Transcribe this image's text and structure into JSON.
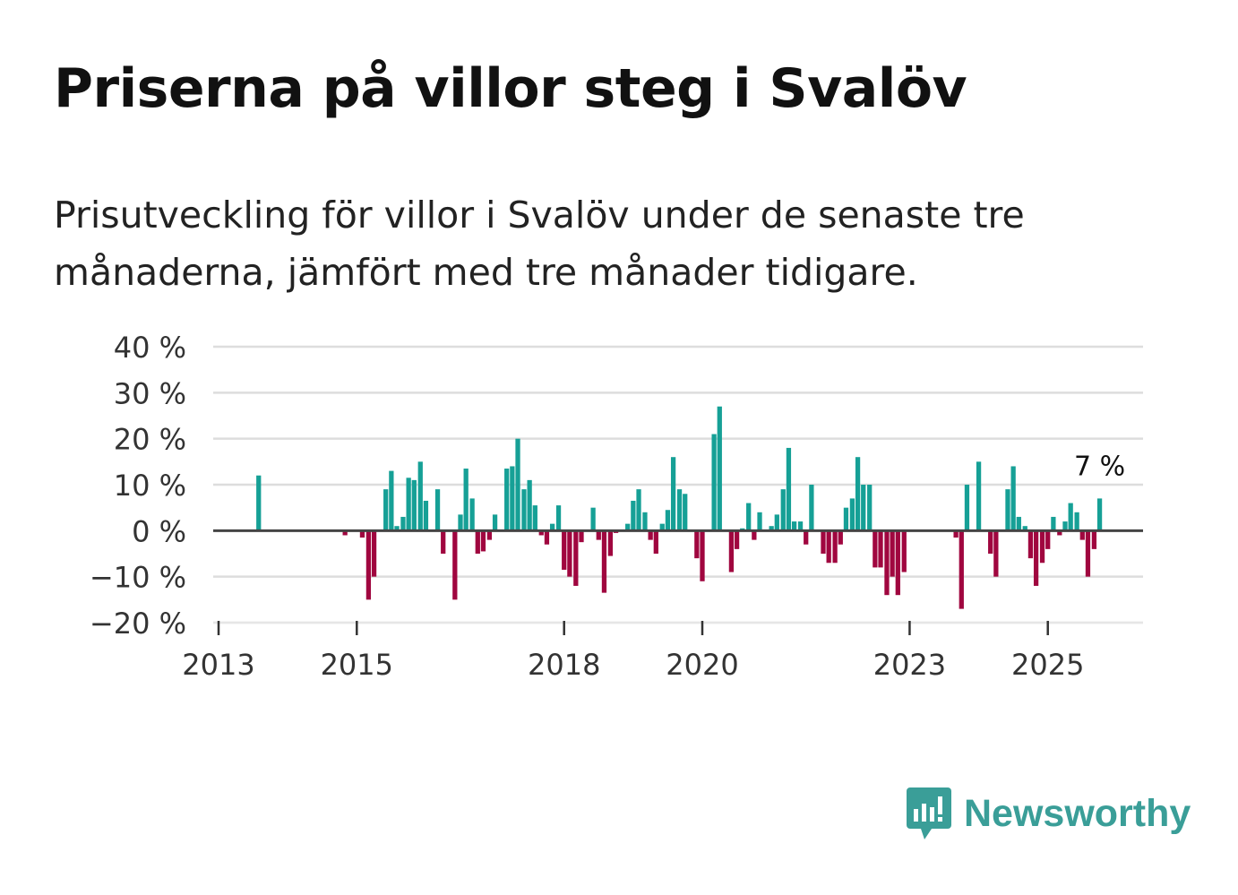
{
  "title": "Priserna på villor steg i Svalöv",
  "subtitle": "Prisutveckling för villor i Svalöv under de senaste tre månaderna, jämfört med tre månader tidigare.",
  "brand": {
    "name": "Newsworthy",
    "color": "#3a9e98"
  },
  "colors": {
    "positive": "#16a096",
    "negative": "#a0063f",
    "grid": "#dddddd",
    "zero": "#444444"
  },
  "chart_data": {
    "type": "bar",
    "title": "Priserna på villor steg i Svalöv",
    "ylim": [
      -20,
      40
    ],
    "yticks": [
      40,
      30,
      20,
      10,
      0,
      -10,
      -20
    ],
    "ytick_labels": [
      "40 %",
      "30 %",
      "20 %",
      "10 %",
      "0 %",
      "−10 %",
      "−20 %"
    ],
    "xticks": [
      {
        "year": 2013,
        "label": "2013"
      },
      {
        "year": 2015,
        "label": "2015"
      },
      {
        "year": 2018,
        "label": "2018"
      },
      {
        "year": 2020,
        "label": "2020"
      },
      {
        "year": 2023,
        "label": "2023"
      },
      {
        "year": 2025,
        "label": "2025"
      }
    ],
    "start_year": 2013,
    "end_year": 2026.4,
    "last_value_label": "7 %",
    "months_per_bar": 1,
    "series": [
      {
        "t": 2013.58,
        "v": 12
      },
      {
        "t": 2014.83,
        "v": -1
      },
      {
        "t": 2015.08,
        "v": -1.5
      },
      {
        "t": 2015.17,
        "v": -15
      },
      {
        "t": 2015.25,
        "v": -10
      },
      {
        "t": 2015.42,
        "v": 9
      },
      {
        "t": 2015.5,
        "v": 13
      },
      {
        "t": 2015.58,
        "v": 1
      },
      {
        "t": 2015.67,
        "v": 3
      },
      {
        "t": 2015.75,
        "v": 11.5
      },
      {
        "t": 2015.83,
        "v": 11
      },
      {
        "t": 2015.92,
        "v": 15
      },
      {
        "t": 2016.0,
        "v": 6.5
      },
      {
        "t": 2016.17,
        "v": 9
      },
      {
        "t": 2016.25,
        "v": -5
      },
      {
        "t": 2016.42,
        "v": -15
      },
      {
        "t": 2016.5,
        "v": 3.5
      },
      {
        "t": 2016.58,
        "v": 13.5
      },
      {
        "t": 2016.67,
        "v": 7
      },
      {
        "t": 2016.75,
        "v": -5
      },
      {
        "t": 2016.83,
        "v": -4.5
      },
      {
        "t": 2016.92,
        "v": -2
      },
      {
        "t": 2017.0,
        "v": 3.5
      },
      {
        "t": 2017.17,
        "v": 13.5
      },
      {
        "t": 2017.25,
        "v": 14
      },
      {
        "t": 2017.33,
        "v": 20
      },
      {
        "t": 2017.42,
        "v": 9
      },
      {
        "t": 2017.5,
        "v": 11
      },
      {
        "t": 2017.58,
        "v": 5.5
      },
      {
        "t": 2017.67,
        "v": -1
      },
      {
        "t": 2017.75,
        "v": -3
      },
      {
        "t": 2017.83,
        "v": 1.5
      },
      {
        "t": 2017.92,
        "v": 5.5
      },
      {
        "t": 2018.0,
        "v": -8.5
      },
      {
        "t": 2018.08,
        "v": -10
      },
      {
        "t": 2018.17,
        "v": -12
      },
      {
        "t": 2018.25,
        "v": -2.5
      },
      {
        "t": 2018.42,
        "v": 5
      },
      {
        "t": 2018.5,
        "v": -2
      },
      {
        "t": 2018.58,
        "v": -13.5
      },
      {
        "t": 2018.67,
        "v": -5.5
      },
      {
        "t": 2018.75,
        "v": -0.5
      },
      {
        "t": 2018.92,
        "v": 1.5
      },
      {
        "t": 2019.0,
        "v": 6.5
      },
      {
        "t": 2019.08,
        "v": 9
      },
      {
        "t": 2019.17,
        "v": 4
      },
      {
        "t": 2019.25,
        "v": -2
      },
      {
        "t": 2019.33,
        "v": -5
      },
      {
        "t": 2019.42,
        "v": 1.5
      },
      {
        "t": 2019.5,
        "v": 4.5
      },
      {
        "t": 2019.58,
        "v": 16
      },
      {
        "t": 2019.67,
        "v": 9
      },
      {
        "t": 2019.75,
        "v": 8
      },
      {
        "t": 2019.92,
        "v": -6
      },
      {
        "t": 2020.0,
        "v": -11
      },
      {
        "t": 2020.17,
        "v": 21
      },
      {
        "t": 2020.25,
        "v": 27
      },
      {
        "t": 2020.42,
        "v": -9
      },
      {
        "t": 2020.5,
        "v": -4
      },
      {
        "t": 2020.58,
        "v": 0.5
      },
      {
        "t": 2020.67,
        "v": 6
      },
      {
        "t": 2020.75,
        "v": -2
      },
      {
        "t": 2020.83,
        "v": 4
      },
      {
        "t": 2021.0,
        "v": 1
      },
      {
        "t": 2021.08,
        "v": 3.5
      },
      {
        "t": 2021.17,
        "v": 9
      },
      {
        "t": 2021.25,
        "v": 18
      },
      {
        "t": 2021.33,
        "v": 2
      },
      {
        "t": 2021.42,
        "v": 2
      },
      {
        "t": 2021.5,
        "v": -3
      },
      {
        "t": 2021.58,
        "v": 10
      },
      {
        "t": 2021.75,
        "v": -5
      },
      {
        "t": 2021.83,
        "v": -7
      },
      {
        "t": 2021.92,
        "v": -7
      },
      {
        "t": 2022.0,
        "v": -3
      },
      {
        "t": 2022.08,
        "v": 5
      },
      {
        "t": 2022.17,
        "v": 7
      },
      {
        "t": 2022.25,
        "v": 16
      },
      {
        "t": 2022.33,
        "v": 10
      },
      {
        "t": 2022.42,
        "v": 10
      },
      {
        "t": 2022.5,
        "v": -8
      },
      {
        "t": 2022.58,
        "v": -8
      },
      {
        "t": 2022.67,
        "v": -14
      },
      {
        "t": 2022.75,
        "v": -10
      },
      {
        "t": 2022.83,
        "v": -14
      },
      {
        "t": 2022.92,
        "v": -9
      },
      {
        "t": 2023.67,
        "v": -1.5
      },
      {
        "t": 2023.75,
        "v": -17
      },
      {
        "t": 2023.83,
        "v": 10
      },
      {
        "t": 2024.0,
        "v": 15
      },
      {
        "t": 2024.17,
        "v": -5
      },
      {
        "t": 2024.25,
        "v": -10
      },
      {
        "t": 2024.42,
        "v": 9
      },
      {
        "t": 2024.5,
        "v": 14
      },
      {
        "t": 2024.58,
        "v": 3
      },
      {
        "t": 2024.67,
        "v": 1
      },
      {
        "t": 2024.75,
        "v": -6
      },
      {
        "t": 2024.83,
        "v": -12
      },
      {
        "t": 2024.92,
        "v": -7
      },
      {
        "t": 2025.0,
        "v": -4
      },
      {
        "t": 2025.08,
        "v": 3
      },
      {
        "t": 2025.17,
        "v": -1
      },
      {
        "t": 2025.25,
        "v": 2
      },
      {
        "t": 2025.33,
        "v": 6
      },
      {
        "t": 2025.42,
        "v": 4
      },
      {
        "t": 2025.5,
        "v": -2
      },
      {
        "t": 2025.58,
        "v": -10
      },
      {
        "t": 2025.67,
        "v": -4
      },
      {
        "t": 2025.75,
        "v": 7
      }
    ]
  }
}
